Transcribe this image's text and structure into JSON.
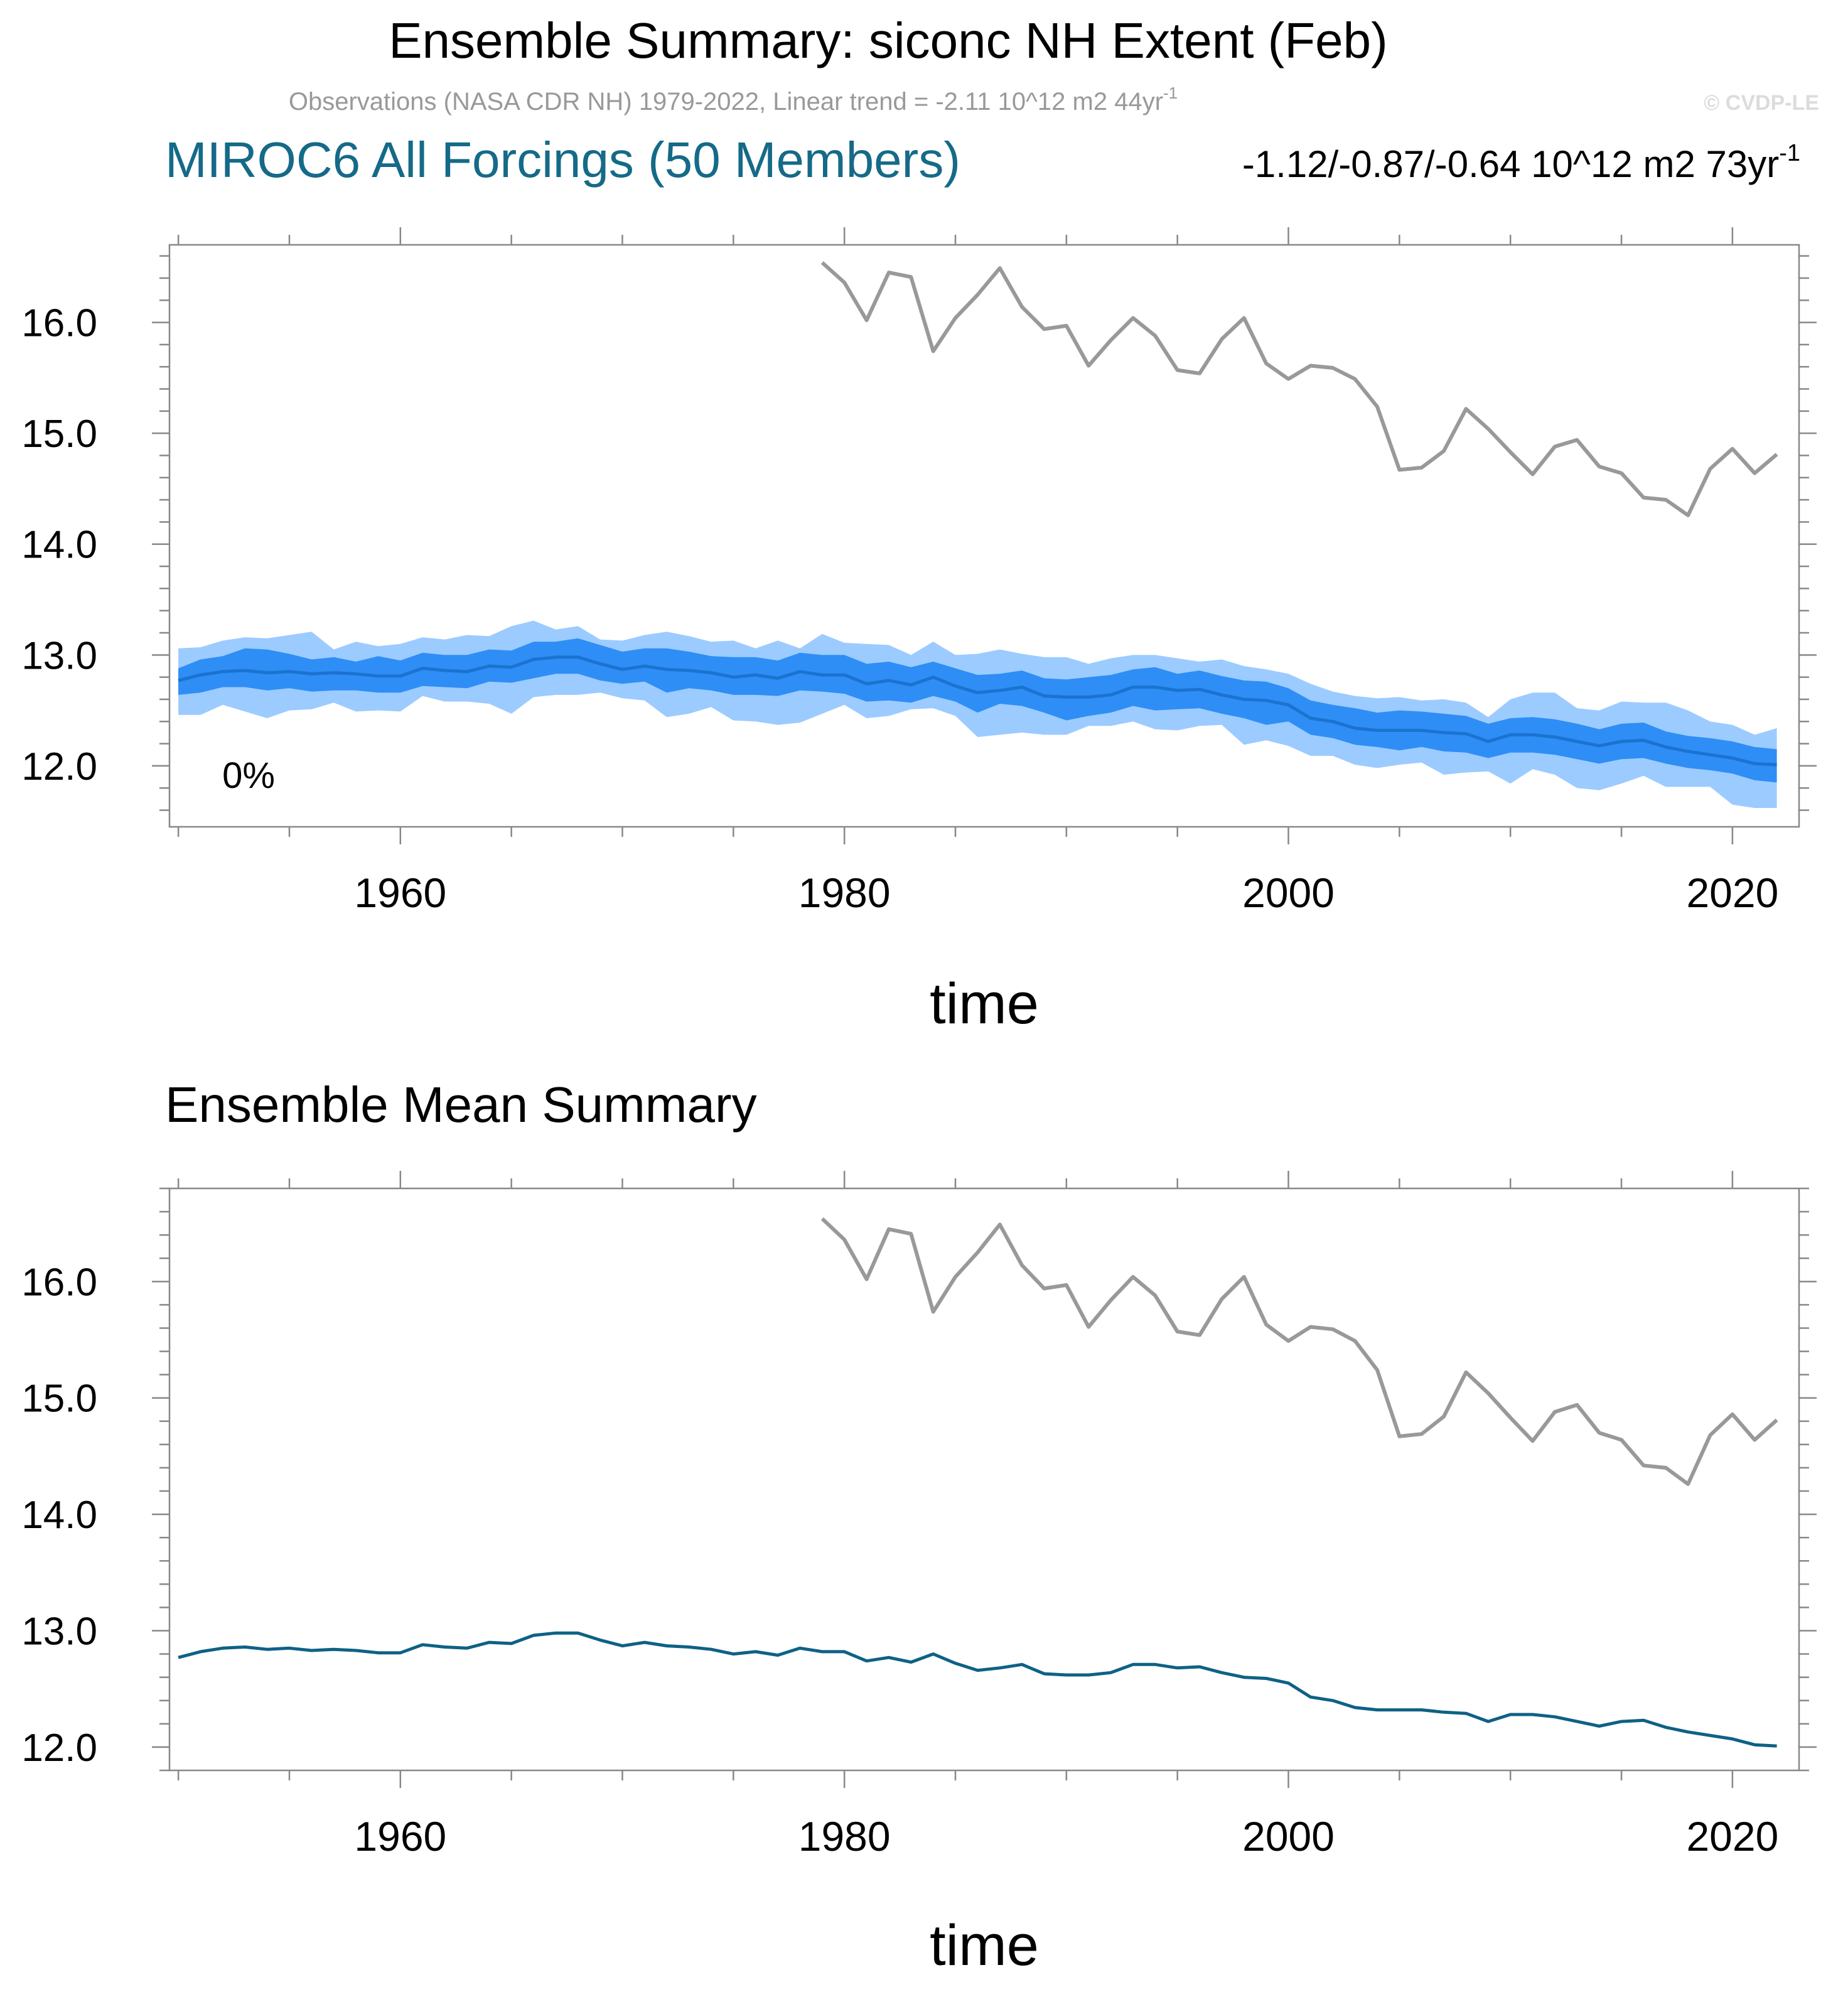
{
  "figure": {
    "title": "Ensemble Summary: siconc NH Extent (Feb)",
    "obs_label": "Observations (NASA CDR NH) 1979-2022, Linear trend = -2.11 10^12 m2 44yr",
    "obs_label_sup": "-1",
    "watermark": "© CVDP-LE"
  },
  "colors": {
    "obs_line": "#999999",
    "ens_mean": "#1a73cf",
    "band_inner": "#2e8ef5",
    "band_outer": "#9ccbff",
    "model_title": "#156a88",
    "mean_panel_line": "#0e6185",
    "axis": "#888888"
  },
  "chart_data": [
    {
      "type": "line",
      "title": "MIROC6 All Forcings (50 Members)",
      "trend_label": "-1.12/-0.87/-0.64 10^12 m2 73yr",
      "trend_label_sup": "-1",
      "annotation": "0%",
      "xlabel": "time",
      "ylabel": "",
      "xlim": [
        1949.6,
        2023
      ],
      "ylim": [
        11.45,
        16.7
      ],
      "xticks": [
        1960,
        1980,
        2000,
        2020
      ],
      "yticks": [
        12.0,
        13.0,
        14.0,
        15.0,
        16.0
      ],
      "ytick_labels": [
        "12.0",
        "13.0",
        "14.0",
        "15.0",
        "16.0"
      ],
      "series": [
        {
          "name": "Observations",
          "x": [
            1979,
            1980,
            1981,
            1982,
            1983,
            1984,
            1985,
            1986,
            1987,
            1988,
            1989,
            1990,
            1991,
            1992,
            1993,
            1994,
            1995,
            1996,
            1997,
            1998,
            1999,
            2000,
            2001,
            2002,
            2003,
            2004,
            2005,
            2006,
            2007,
            2008,
            2009,
            2010,
            2011,
            2012,
            2013,
            2014,
            2015,
            2016,
            2017,
            2018,
            2019,
            2020,
            2021,
            2022
          ],
          "values": [
            16.54,
            16.36,
            16.02,
            16.45,
            16.41,
            15.74,
            16.04,
            16.25,
            16.49,
            16.14,
            15.94,
            15.97,
            15.61,
            15.84,
            16.04,
            15.88,
            15.57,
            15.54,
            15.85,
            16.04,
            15.63,
            15.49,
            15.61,
            15.59,
            15.49,
            15.24,
            14.67,
            14.69,
            14.84,
            15.22,
            15.04,
            14.83,
            14.63,
            14.88,
            14.94,
            14.7,
            14.64,
            14.42,
            14.4,
            14.26,
            14.68,
            14.86,
            14.64,
            14.81
          ]
        },
        {
          "name": "Ensemble Mean",
          "x": [
            1950,
            1951,
            1952,
            1953,
            1954,
            1955,
            1956,
            1957,
            1958,
            1959,
            1960,
            1961,
            1962,
            1963,
            1964,
            1965,
            1966,
            1967,
            1968,
            1969,
            1970,
            1971,
            1972,
            1973,
            1974,
            1975,
            1976,
            1977,
            1978,
            1979,
            1980,
            1981,
            1982,
            1983,
            1984,
            1985,
            1986,
            1987,
            1988,
            1989,
            1990,
            1991,
            1992,
            1993,
            1994,
            1995,
            1996,
            1997,
            1998,
            1999,
            2000,
            2001,
            2002,
            2003,
            2004,
            2005,
            2006,
            2007,
            2008,
            2009,
            2010,
            2011,
            2012,
            2013,
            2014,
            2015,
            2016,
            2017,
            2018,
            2019,
            2020,
            2021,
            2022
          ],
          "values": [
            12.77,
            12.82,
            12.85,
            12.86,
            12.84,
            12.85,
            12.83,
            12.84,
            12.83,
            12.81,
            12.81,
            12.88,
            12.86,
            12.85,
            12.9,
            12.89,
            12.96,
            12.98,
            12.98,
            12.92,
            12.87,
            12.9,
            12.87,
            12.86,
            12.84,
            12.8,
            12.82,
            12.79,
            12.85,
            12.82,
            12.82,
            12.74,
            12.77,
            12.73,
            12.8,
            12.72,
            12.66,
            12.68,
            12.71,
            12.63,
            12.62,
            12.62,
            12.64,
            12.71,
            12.71,
            12.68,
            12.69,
            12.64,
            12.6,
            12.59,
            12.55,
            12.43,
            12.4,
            12.34,
            12.32,
            12.32,
            12.32,
            12.3,
            12.29,
            12.22,
            12.28,
            12.28,
            12.26,
            12.22,
            12.18,
            12.22,
            12.23,
            12.17,
            12.13,
            12.1,
            12.07,
            12.02,
            12.01
          ]
        },
        {
          "name": "Ensemble 10-90% range",
          "x": [
            1950,
            1951,
            1952,
            1953,
            1954,
            1955,
            1956,
            1957,
            1958,
            1959,
            1960,
            1961,
            1962,
            1963,
            1964,
            1965,
            1966,
            1967,
            1968,
            1969,
            1970,
            1971,
            1972,
            1973,
            1974,
            1975,
            1976,
            1977,
            1978,
            1979,
            1980,
            1981,
            1982,
            1983,
            1984,
            1985,
            1986,
            1987,
            1988,
            1989,
            1990,
            1991,
            1992,
            1993,
            1994,
            1995,
            1996,
            1997,
            1998,
            1999,
            2000,
            2001,
            2002,
            2003,
            2004,
            2005,
            2006,
            2007,
            2008,
            2009,
            2010,
            2011,
            2012,
            2013,
            2014,
            2015,
            2016,
            2017,
            2018,
            2019,
            2020,
            2021,
            2022
          ],
          "lower": [
            12.64,
            12.66,
            12.71,
            12.71,
            12.68,
            12.7,
            12.67,
            12.68,
            12.68,
            12.66,
            12.66,
            12.72,
            12.71,
            12.7,
            12.76,
            12.75,
            12.79,
            12.83,
            12.83,
            12.77,
            12.74,
            12.76,
            12.66,
            12.7,
            12.68,
            12.64,
            12.64,
            12.63,
            12.68,
            12.67,
            12.65,
            12.58,
            12.59,
            12.57,
            12.63,
            12.58,
            12.48,
            12.56,
            12.54,
            12.48,
            12.41,
            12.45,
            12.48,
            12.54,
            12.5,
            12.51,
            12.52,
            12.47,
            12.43,
            12.37,
            12.4,
            12.28,
            12.25,
            12.19,
            12.17,
            12.14,
            12.17,
            12.13,
            12.12,
            12.07,
            12.12,
            12.12,
            12.1,
            12.06,
            12.02,
            12.06,
            12.07,
            12.02,
            11.98,
            11.96,
            11.93,
            11.87,
            11.85
          ],
          "upper": [
            12.88,
            12.96,
            12.99,
            13.06,
            13.05,
            13.01,
            12.96,
            12.98,
            12.94,
            12.99,
            12.95,
            13.02,
            13.0,
            13.0,
            13.05,
            13.04,
            13.12,
            13.12,
            13.15,
            13.09,
            13.03,
            13.06,
            13.06,
            13.03,
            12.99,
            12.98,
            12.98,
            12.95,
            13.02,
            13.0,
            13.0,
            12.92,
            12.94,
            12.89,
            12.94,
            12.88,
            12.82,
            12.83,
            12.86,
            12.79,
            12.78,
            12.8,
            12.82,
            12.87,
            12.89,
            12.83,
            12.86,
            12.81,
            12.77,
            12.76,
            12.7,
            12.59,
            12.55,
            12.52,
            12.48,
            12.5,
            12.49,
            12.47,
            12.45,
            12.38,
            12.43,
            12.44,
            12.42,
            12.38,
            12.33,
            12.38,
            12.39,
            12.31,
            12.27,
            12.25,
            12.22,
            12.17,
            12.15
          ]
        },
        {
          "name": "Ensemble min-max range",
          "x": [
            1950,
            1951,
            1952,
            1953,
            1954,
            1955,
            1956,
            1957,
            1958,
            1959,
            1960,
            1961,
            1962,
            1963,
            1964,
            1965,
            1966,
            1967,
            1968,
            1969,
            1970,
            1971,
            1972,
            1973,
            1974,
            1975,
            1976,
            1977,
            1978,
            1979,
            1980,
            1981,
            1982,
            1983,
            1984,
            1985,
            1986,
            1987,
            1988,
            1989,
            1990,
            1991,
            1992,
            1993,
            1994,
            1995,
            1996,
            1997,
            1998,
            1999,
            2000,
            2001,
            2002,
            2003,
            2004,
            2005,
            2006,
            2007,
            2008,
            2009,
            2010,
            2011,
            2012,
            2013,
            2014,
            2015,
            2016,
            2017,
            2018,
            2019,
            2020,
            2021,
            2022
          ],
          "lower": [
            12.46,
            12.46,
            12.55,
            12.49,
            12.43,
            12.5,
            12.51,
            12.57,
            12.49,
            12.5,
            12.49,
            12.63,
            12.58,
            12.58,
            12.56,
            12.47,
            12.62,
            12.64,
            12.64,
            12.66,
            12.61,
            12.59,
            12.44,
            12.47,
            12.53,
            12.41,
            12.4,
            12.37,
            12.39,
            12.47,
            12.55,
            12.43,
            12.45,
            12.51,
            12.52,
            12.45,
            12.26,
            12.28,
            12.3,
            12.28,
            12.28,
            12.36,
            12.36,
            12.4,
            12.33,
            12.32,
            12.36,
            12.37,
            12.19,
            12.23,
            12.18,
            12.09,
            12.09,
            12.01,
            11.98,
            12.01,
            12.03,
            11.92,
            11.94,
            11.95,
            11.84,
            11.97,
            11.92,
            11.8,
            11.78,
            11.84,
            11.91,
            11.81,
            11.81,
            11.81,
            11.65,
            11.62,
            11.62
          ],
          "upper": [
            13.06,
            13.07,
            13.13,
            13.16,
            13.15,
            13.18,
            13.21,
            13.05,
            13.12,
            13.08,
            13.1,
            13.16,
            13.14,
            13.18,
            13.17,
            13.26,
            13.31,
            13.23,
            13.26,
            13.14,
            13.13,
            13.18,
            13.21,
            13.17,
            13.12,
            13.13,
            13.06,
            13.13,
            13.06,
            13.19,
            13.11,
            13.1,
            13.09,
            13.0,
            13.12,
            13.0,
            13.01,
            13.05,
            13.01,
            12.98,
            12.98,
            12.92,
            12.97,
            13.0,
            13.0,
            12.97,
            12.94,
            12.96,
            12.9,
            12.87,
            12.83,
            12.74,
            12.67,
            12.63,
            12.61,
            12.62,
            12.59,
            12.6,
            12.57,
            12.44,
            12.6,
            12.66,
            12.66,
            12.52,
            12.5,
            12.58,
            12.57,
            12.57,
            12.5,
            12.4,
            12.37,
            12.28,
            12.34
          ]
        }
      ]
    },
    {
      "type": "line",
      "title": "Ensemble Mean Summary",
      "xlabel": "time",
      "ylabel": "",
      "xlim": [
        1949.6,
        2023
      ],
      "ylim": [
        11.8,
        16.8
      ],
      "xticks": [
        1960,
        1980,
        2000,
        2020
      ],
      "yticks": [
        12.0,
        13.0,
        14.0,
        15.0,
        16.0
      ],
      "ytick_labels": [
        "12.0",
        "13.0",
        "14.0",
        "15.0",
        "16.0"
      ],
      "series": [
        {
          "name": "Observations",
          "x": [
            1979,
            1980,
            1981,
            1982,
            1983,
            1984,
            1985,
            1986,
            1987,
            1988,
            1989,
            1990,
            1991,
            1992,
            1993,
            1994,
            1995,
            1996,
            1997,
            1998,
            1999,
            2000,
            2001,
            2002,
            2003,
            2004,
            2005,
            2006,
            2007,
            2008,
            2009,
            2010,
            2011,
            2012,
            2013,
            2014,
            2015,
            2016,
            2017,
            2018,
            2019,
            2020,
            2021,
            2022
          ],
          "values": [
            16.54,
            16.36,
            16.02,
            16.45,
            16.41,
            15.74,
            16.04,
            16.25,
            16.49,
            16.14,
            15.94,
            15.97,
            15.61,
            15.84,
            16.04,
            15.88,
            15.57,
            15.54,
            15.85,
            16.04,
            15.63,
            15.49,
            15.61,
            15.59,
            15.49,
            15.24,
            14.67,
            14.69,
            14.84,
            15.22,
            15.04,
            14.83,
            14.63,
            14.88,
            14.94,
            14.7,
            14.64,
            14.42,
            14.4,
            14.26,
            14.68,
            14.86,
            14.64,
            14.81
          ]
        },
        {
          "name": "MIROC6 Ensemble Mean",
          "x": [
            1950,
            1951,
            1952,
            1953,
            1954,
            1955,
            1956,
            1957,
            1958,
            1959,
            1960,
            1961,
            1962,
            1963,
            1964,
            1965,
            1966,
            1967,
            1968,
            1969,
            1970,
            1971,
            1972,
            1973,
            1974,
            1975,
            1976,
            1977,
            1978,
            1979,
            1980,
            1981,
            1982,
            1983,
            1984,
            1985,
            1986,
            1987,
            1988,
            1989,
            1990,
            1991,
            1992,
            1993,
            1994,
            1995,
            1996,
            1997,
            1998,
            1999,
            2000,
            2001,
            2002,
            2003,
            2004,
            2005,
            2006,
            2007,
            2008,
            2009,
            2010,
            2011,
            2012,
            2013,
            2014,
            2015,
            2016,
            2017,
            2018,
            2019,
            2020,
            2021,
            2022
          ],
          "values": [
            12.77,
            12.82,
            12.85,
            12.86,
            12.84,
            12.85,
            12.83,
            12.84,
            12.83,
            12.81,
            12.81,
            12.88,
            12.86,
            12.85,
            12.9,
            12.89,
            12.96,
            12.98,
            12.98,
            12.92,
            12.87,
            12.9,
            12.87,
            12.86,
            12.84,
            12.8,
            12.82,
            12.79,
            12.85,
            12.82,
            12.82,
            12.74,
            12.77,
            12.73,
            12.8,
            12.72,
            12.66,
            12.68,
            12.71,
            12.63,
            12.62,
            12.62,
            12.64,
            12.71,
            12.71,
            12.68,
            12.69,
            12.64,
            12.6,
            12.59,
            12.55,
            12.43,
            12.4,
            12.34,
            12.32,
            12.32,
            12.32,
            12.3,
            12.29,
            12.22,
            12.28,
            12.28,
            12.26,
            12.22,
            12.18,
            12.22,
            12.23,
            12.17,
            12.13,
            12.1,
            12.07,
            12.02,
            12.01
          ]
        }
      ]
    }
  ]
}
